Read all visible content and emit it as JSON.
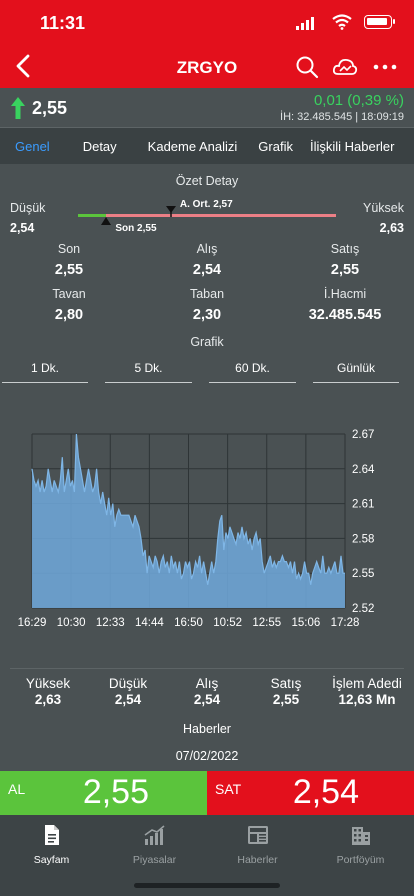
{
  "status": {
    "time": "11:31"
  },
  "nav": {
    "title": "ZRGYO"
  },
  "quote": {
    "last": "2,55",
    "change": "0,01 (0,39 %)",
    "volume_info": "İH:  32.485.545 | 18:09:19"
  },
  "tabs": [
    "Genel",
    "Detay",
    "Kademe Analizi",
    "Grafik",
    "İlişkili Haberler"
  ],
  "summary": {
    "title": "Özet Detay",
    "low_label": "Düşük",
    "low": "2,54",
    "high_label": "Yüksek",
    "high": "2,63",
    "avg_label": "A. Ort. 2,57",
    "last_label": "Son 2,55",
    "avg_fraction": 0.36,
    "last_fraction": 0.11
  },
  "details": [
    [
      {
        "label": "Son",
        "value": "2,55"
      },
      {
        "label": "Alış",
        "value": "2,54"
      },
      {
        "label": "Satış",
        "value": "2,55"
      }
    ],
    [
      {
        "label": "Tavan",
        "value": "2,80"
      },
      {
        "label": "Taban",
        "value": "2,30"
      },
      {
        "label": "İ.Hacmi",
        "value": "32.485.545"
      }
    ]
  ],
  "chart_section": {
    "title": "Grafik",
    "periods": [
      "1 Dk.",
      "5 Dk.",
      "60 Dk.",
      "Günlük"
    ]
  },
  "chart_data": {
    "type": "area",
    "x_ticks": [
      "16:29",
      "10:30",
      "12:33",
      "14:44",
      "16:50",
      "10:52",
      "12:55",
      "15:06",
      "17:28"
    ],
    "y_ticks": [
      "2.67",
      "2.64",
      "2.61",
      "2.58",
      "2.55",
      "2.52"
    ],
    "ylim": [
      2.52,
      2.67
    ],
    "grid": true,
    "color": "#6ea6d8",
    "values": [
      2.64,
      2.63,
      2.625,
      2.63,
      2.62,
      2.63,
      2.62,
      2.625,
      2.64,
      2.63,
      2.62,
      2.63,
      2.625,
      2.62,
      2.63,
      2.65,
      2.62,
      2.63,
      2.64,
      2.625,
      2.63,
      2.62,
      2.67,
      2.65,
      2.64,
      2.63,
      2.62,
      2.63,
      2.64,
      2.63,
      2.62,
      2.625,
      2.64,
      2.62,
      2.61,
      2.62,
      2.61,
      2.6,
      2.615,
      2.6,
      2.61,
      2.59,
      2.6,
      2.605,
      2.6,
      2.6,
      2.6,
      2.6,
      2.6,
      2.595,
      2.59,
      2.6,
      2.595,
      2.59,
      2.58,
      2.565,
      2.57,
      2.55,
      2.565,
      2.56,
      2.555,
      2.565,
      2.56,
      2.55,
      2.56,
      2.565,
      2.555,
      2.56,
      2.55,
      2.565,
      2.555,
      2.56,
      2.55,
      2.56,
      2.545,
      2.55,
      2.56,
      2.555,
      2.56,
      2.545,
      2.55,
      2.56,
      2.555,
      2.565,
      2.55,
      2.56,
      2.55,
      2.54,
      2.55,
      2.56,
      2.55,
      2.56,
      2.58,
      2.595,
      2.6,
      2.57,
      2.585,
      2.58,
      2.59,
      2.585,
      2.58,
      2.575,
      2.585,
      2.58,
      2.59,
      2.58,
      2.585,
      2.575,
      2.58,
      2.57,
      2.58,
      2.585,
      2.575,
      2.58,
      2.56,
      2.55,
      2.555,
      2.56,
      2.565,
      2.555,
      2.56,
      2.555,
      2.56,
      2.56,
      2.565,
      2.56,
      2.56,
      2.555,
      2.56,
      2.55,
      2.56,
      2.545,
      2.55,
      2.545,
      2.55,
      2.56,
      2.55,
      2.55,
      2.54,
      2.55,
      2.555,
      2.56,
      2.555,
      2.55,
      2.565,
      2.55,
      2.55,
      2.555,
      2.55,
      2.555,
      2.56,
      2.55,
      2.55,
      2.565,
      2.55,
      2.55
    ]
  },
  "stats": [
    {
      "label": "Yüksek",
      "value": "2,63"
    },
    {
      "label": "Düşük",
      "value": "2,54"
    },
    {
      "label": "Alış",
      "value": "2,54"
    },
    {
      "label": "Satış",
      "value": "2,55"
    },
    {
      "label": "İşlem Adedi",
      "value": "12,63 Mn"
    }
  ],
  "news": {
    "title": "Haberler",
    "date": "07/02/2022"
  },
  "trade": {
    "buy_label": "AL",
    "buy_price": "2,55",
    "sell_label": "SAT",
    "sell_price": "2,54",
    "buy_color": "#5bc43c",
    "sell_color": "#e3101c"
  },
  "tabbar": [
    {
      "label": "Sayfam",
      "icon": "document-icon"
    },
    {
      "label": "Piyasalar",
      "icon": "bar-chart-icon"
    },
    {
      "label": "Haberler",
      "icon": "newspaper-icon"
    },
    {
      "label": "Portföyüm",
      "icon": "building-icon"
    }
  ]
}
